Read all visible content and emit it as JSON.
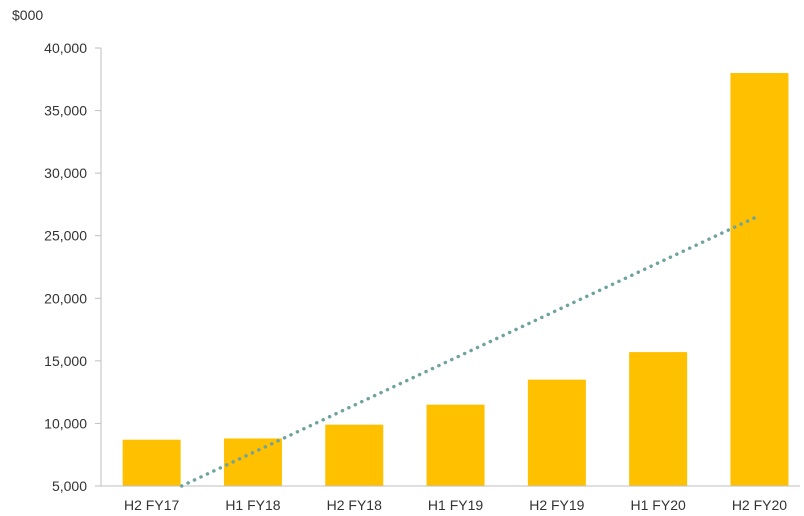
{
  "chart_data": {
    "type": "bar",
    "unit_label": "$000",
    "categories": [
      "H2 FY17",
      "H1 FY18",
      "H2 FY18",
      "H1 FY19",
      "H2 FY19",
      "H1 FY20",
      "H2 FY20"
    ],
    "series": [
      {
        "values": [
          8700,
          8800,
          9900,
          11500,
          13500,
          15700,
          38000
        ],
        "color": "#FFC000"
      }
    ],
    "trendline": {
      "type": "linear",
      "style": "dotted",
      "color": "#6FA3A0",
      "start_value": 5000,
      "end_value": 26500
    },
    "ylim": [
      5000,
      40000
    ],
    "yticks": [
      "5,000",
      "10,000",
      "15,000",
      "20,000",
      "25,000",
      "30,000",
      "35,000",
      "40,000"
    ],
    "ytick_values": [
      5000,
      10000,
      15000,
      20000,
      25000,
      30000,
      35000,
      40000
    ],
    "grid": false,
    "legend": "none"
  }
}
